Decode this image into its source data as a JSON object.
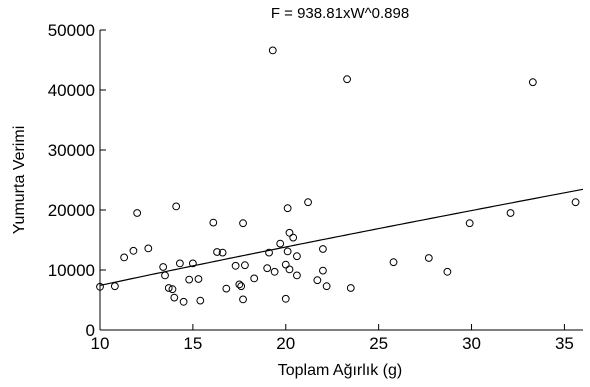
{
  "chart_data": {
    "type": "scatter",
    "title": "F = 938.81xW^0.898",
    "xlabel": "Toplam Ağırlık (g)",
    "ylabel": "Yumurta Verimi",
    "xlim": [
      10,
      36
    ],
    "ylim": [
      0,
      50000
    ],
    "x_ticks": [
      "10",
      "15",
      "20",
      "25",
      "30",
      "35"
    ],
    "y_ticks": [
      "0",
      "10000",
      "20000",
      "30000",
      "40000",
      "50000"
    ],
    "grid": false,
    "legend": "none",
    "fit": {
      "a": 938.81,
      "b": 0.898
    },
    "points": [
      {
        "x": 10.0,
        "y": 7200
      },
      {
        "x": 10.8,
        "y": 7300
      },
      {
        "x": 11.3,
        "y": 12100
      },
      {
        "x": 11.8,
        "y": 13200
      },
      {
        "x": 12.0,
        "y": 19500
      },
      {
        "x": 12.6,
        "y": 13600
      },
      {
        "x": 13.4,
        "y": 10500
      },
      {
        "x": 13.5,
        "y": 9100
      },
      {
        "x": 13.7,
        "y": 7000
      },
      {
        "x": 13.9,
        "y": 6800
      },
      {
        "x": 14.0,
        "y": 5400
      },
      {
        "x": 14.1,
        "y": 20600
      },
      {
        "x": 14.3,
        "y": 11100
      },
      {
        "x": 14.5,
        "y": 4700
      },
      {
        "x": 14.8,
        "y": 8400
      },
      {
        "x": 15.0,
        "y": 11100
      },
      {
        "x": 15.3,
        "y": 8500
      },
      {
        "x": 15.4,
        "y": 4900
      },
      {
        "x": 16.1,
        "y": 17900
      },
      {
        "x": 16.3,
        "y": 13000
      },
      {
        "x": 16.6,
        "y": 12900
      },
      {
        "x": 16.8,
        "y": 6900
      },
      {
        "x": 17.3,
        "y": 10700
      },
      {
        "x": 17.5,
        "y": 7600
      },
      {
        "x": 17.6,
        "y": 7300
      },
      {
        "x": 17.7,
        "y": 5100
      },
      {
        "x": 17.7,
        "y": 17800
      },
      {
        "x": 17.8,
        "y": 10800
      },
      {
        "x": 18.3,
        "y": 8600
      },
      {
        "x": 19.0,
        "y": 10300
      },
      {
        "x": 19.1,
        "y": 12900
      },
      {
        "x": 19.3,
        "y": 46600
      },
      {
        "x": 19.4,
        "y": 9700
      },
      {
        "x": 19.7,
        "y": 14400
      },
      {
        "x": 20.0,
        "y": 10900
      },
      {
        "x": 20.0,
        "y": 5200
      },
      {
        "x": 20.1,
        "y": 13100
      },
      {
        "x": 20.1,
        "y": 20300
      },
      {
        "x": 20.2,
        "y": 16200
      },
      {
        "x": 20.2,
        "y": 10100
      },
      {
        "x": 20.4,
        "y": 15400
      },
      {
        "x": 20.6,
        "y": 12300
      },
      {
        "x": 20.6,
        "y": 9100
      },
      {
        "x": 21.2,
        "y": 21300
      },
      {
        "x": 21.7,
        "y": 8300
      },
      {
        "x": 22.0,
        "y": 13500
      },
      {
        "x": 22.0,
        "y": 9900
      },
      {
        "x": 22.2,
        "y": 7300
      },
      {
        "x": 23.3,
        "y": 41800
      },
      {
        "x": 23.5,
        "y": 7000
      },
      {
        "x": 25.8,
        "y": 11300
      },
      {
        "x": 27.7,
        "y": 12000
      },
      {
        "x": 28.7,
        "y": 9700
      },
      {
        "x": 29.9,
        "y": 17800
      },
      {
        "x": 32.1,
        "y": 19500
      },
      {
        "x": 33.3,
        "y": 41300
      },
      {
        "x": 35.6,
        "y": 21300
      }
    ]
  }
}
